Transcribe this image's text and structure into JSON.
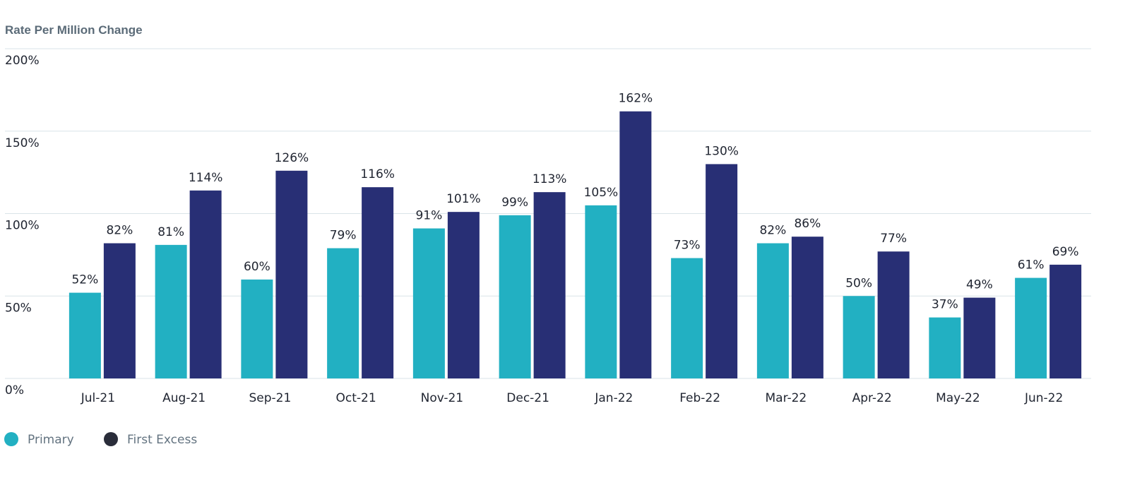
{
  "chart_data": {
    "type": "bar",
    "title": "Rate Per Million Change",
    "xlabel": "",
    "ylabel": "",
    "ylim": [
      0,
      200
    ],
    "yticks": [
      "0%",
      "50%",
      "100%",
      "150%",
      "200%"
    ],
    "ytick_values": [
      0,
      50,
      100,
      150,
      200
    ],
    "grid": true,
    "legend_position": "bottom-left",
    "categories": [
      "Jul-21",
      "Aug-21",
      "Sep-21",
      "Oct-21",
      "Nov-21",
      "Dec-21",
      "Jan-22",
      "Feb-22",
      "Mar-22",
      "Apr-22",
      "May-22",
      "Jun-22"
    ],
    "series": [
      {
        "name": "Primary",
        "color": "#22b0c2",
        "legend_color": "#22b0c2",
        "values": [
          52,
          81,
          60,
          79,
          91,
          99,
          105,
          73,
          82,
          50,
          37,
          61
        ],
        "labels": [
          "52%",
          "81%",
          "60%",
          "79%",
          "91%",
          "99%",
          "105%",
          "73%",
          "82%",
          "50%",
          "37%",
          "61%"
        ]
      },
      {
        "name": "First Excess",
        "color": "#282f75",
        "legend_color": "#2a2d3a",
        "values": [
          82,
          114,
          126,
          116,
          101,
          113,
          162,
          130,
          86,
          77,
          49,
          69
        ],
        "labels": [
          "82%",
          "114%",
          "126%",
          "116%",
          "101%",
          "113%",
          "162%",
          "130%",
          "86%",
          "77%",
          "49%",
          "69%"
        ]
      }
    ]
  }
}
